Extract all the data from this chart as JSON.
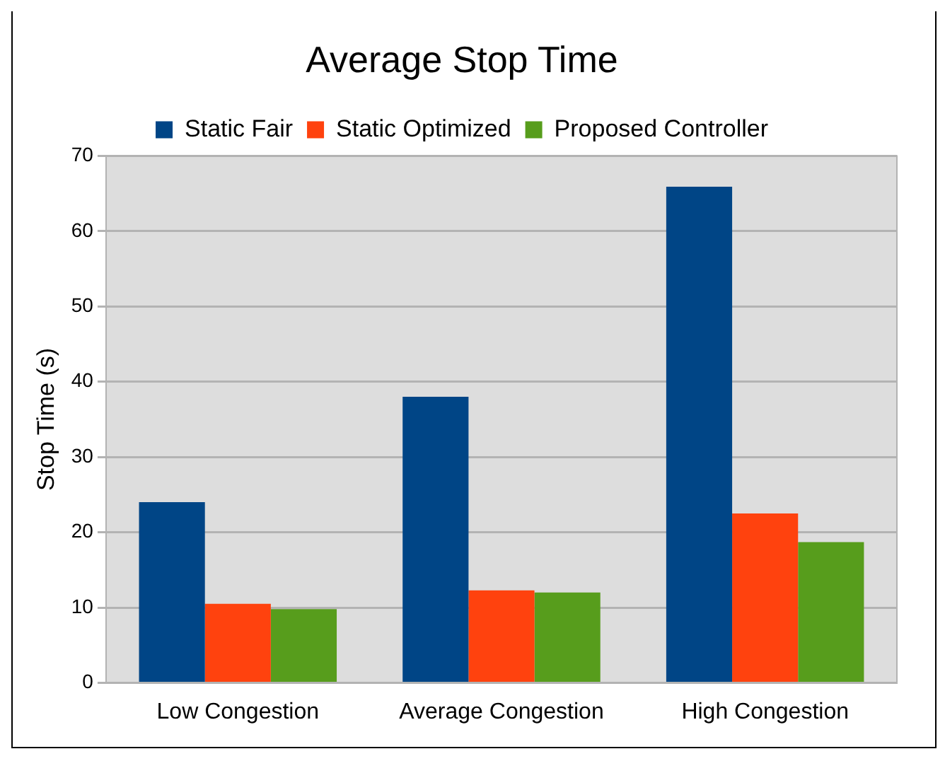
{
  "chart_data": {
    "type": "bar",
    "title": "Average Stop Time",
    "ylabel": "Stop Time (s)",
    "categories": [
      "Low Congestion",
      "Average Congestion",
      "High Congestion"
    ],
    "series": [
      {
        "name": "Static Fair",
        "color": "#004586",
        "values": [
          24,
          38,
          65.9
        ]
      },
      {
        "name": "Static Optimized",
        "color": "#ff420e",
        "values": [
          10.5,
          12.3,
          22.5
        ]
      },
      {
        "name": "Proposed Controller",
        "color": "#579d1c",
        "values": [
          9.8,
          12.0,
          18.7
        ]
      }
    ],
    "ylim": [
      0,
      70
    ],
    "yticks": [
      0,
      10,
      20,
      30,
      40,
      50,
      60,
      70
    ],
    "grid": "y",
    "legend": "top"
  }
}
